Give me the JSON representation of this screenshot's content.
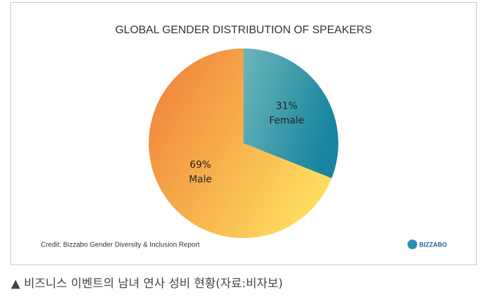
{
  "chart_data": {
    "type": "pie",
    "title": "GLOBAL GENDER DISTRIBUTION OF SPEAKERS",
    "categories": [
      "Female",
      "Male"
    ],
    "values": [
      31,
      69
    ],
    "value_labels": [
      "31%",
      "69%"
    ],
    "colors": [
      [
        "#6db6ba",
        "#17859f"
      ],
      [
        "#ef7c38",
        "#fedb5e"
      ]
    ],
    "credit": "Credit: Bizzabo Gender Diversity & Inclusion Report",
    "logo": "BIZZABO"
  },
  "caption": "▲ 비즈니스 이벤트의 남녀 연사 성비 현황(자료:비자보)"
}
